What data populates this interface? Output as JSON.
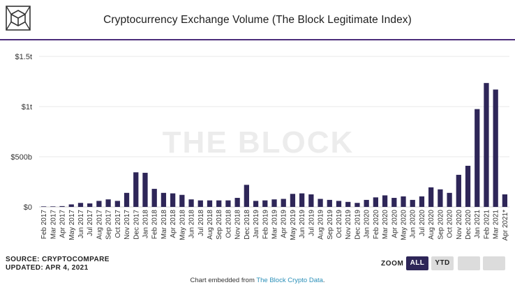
{
  "header": {
    "logo_icon": "the-block-cube-logo-icon",
    "title": "Cryptocurrency Exchange Volume (The Block Legitimate Index)"
  },
  "watermark": "THE BLOCK",
  "footer": {
    "source": "SOURCE: CRYPTOCOMPARE",
    "updated": "UPDATED: APR 4, 2021",
    "zoom_label": "ZOOM",
    "zoom_all": "ALL",
    "zoom_ytd": "YTD",
    "embed_prefix": "Chart embedded from ",
    "embed_link": "The Block Crypto Data",
    "embed_suffix": "."
  },
  "colors": {
    "bar": "#2e2658",
    "divider": "#4b2c7a",
    "link": "#2a8fb8",
    "button_active": "#2e2658",
    "button_inactive": "#dcdcdc"
  },
  "chart_data": {
    "type": "bar",
    "title": "Cryptocurrency Exchange Volume (The Block Legitimate Index)",
    "xlabel": "",
    "ylabel": "",
    "ylim": [
      0,
      1500
    ],
    "y_unit": "billion USD",
    "y_ticks": [
      {
        "value": 0,
        "label": "$0"
      },
      {
        "value": 500,
        "label": "$500b"
      },
      {
        "value": 1000,
        "label": "$1t"
      },
      {
        "value": 1500,
        "label": "$1.5t"
      }
    ],
    "grid": "horizontal",
    "legend": "none",
    "categories": [
      "Feb 2017",
      "Mar 2017",
      "Apr 2017",
      "May 2017",
      "Jun 2017",
      "Jul 2017",
      "Aug 2017",
      "Sep 2017",
      "Oct 2017",
      "Nov 2017",
      "Dec 2017",
      "Jan 2018",
      "Feb 2018",
      "Mar 2018",
      "Apr 2018",
      "May 2018",
      "Jun 2018",
      "Jul 2018",
      "Aug 2018",
      "Sep 2018",
      "Oct 2018",
      "Nov 2018",
      "Dec 2018",
      "Jan 2019",
      "Feb 2019",
      "Mar 2019",
      "Apr 2019",
      "May 2019",
      "Jun 2019",
      "Jul 2019",
      "Aug 2019",
      "Sep 2019",
      "Oct 2019",
      "Nov 2019",
      "Dec 2019",
      "Jan 2020",
      "Feb 2020",
      "Mar 2020",
      "Apr 2020",
      "May 2020",
      "Jun 2020",
      "Jul 2020",
      "Aug 2020",
      "Sep 2020",
      "Oct 2020",
      "Nov 2020",
      "Dec 2020",
      "Jan 2021",
      "Feb 2021",
      "Mar 2021",
      "Apr 2021*"
    ],
    "series": [
      {
        "values": [
          5,
          5,
          8,
          25,
          40,
          35,
          60,
          75,
          60,
          140,
          345,
          340,
          180,
          140,
          135,
          120,
          75,
          65,
          65,
          65,
          65,
          90,
          220,
          60,
          65,
          75,
          80,
          130,
          135,
          125,
          80,
          70,
          60,
          50,
          40,
          70,
          95,
          115,
          90,
          105,
          70,
          105,
          195,
          175,
          140,
          320,
          410,
          975,
          1235,
          1170,
          125
        ]
      }
    ]
  }
}
